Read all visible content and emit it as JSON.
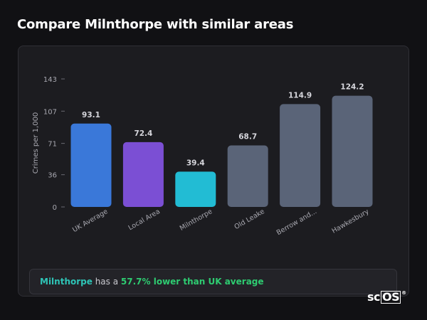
{
  "page": {
    "title": "Compare Milnthorpe with similar areas"
  },
  "chart_data": {
    "type": "bar",
    "ylabel": "Crimes per 1,000",
    "xlabel": "",
    "ylim": [
      0,
      143
    ],
    "yticks": [
      "0",
      "36",
      "71",
      "107",
      "143"
    ],
    "categories": [
      "UK Average",
      "Local Area",
      "Milnthorpe",
      "Old Leake",
      "Berrow and...",
      "Hawkesbury"
    ],
    "values": [
      93.1,
      72.4,
      39.4,
      68.7,
      114.9,
      124.2
    ],
    "value_labels": [
      "93.1",
      "72.4",
      "39.4",
      "68.7",
      "114.9",
      "124.2"
    ],
    "colors": [
      "#3a78d9",
      "#7b4fd4",
      "#22bcd4",
      "#5a6478",
      "#5a6478",
      "#5a6478"
    ],
    "grid": false
  },
  "summary": {
    "area": "Milnthorpe",
    "middle": " has a ",
    "stat": "57.7% lower than UK average"
  },
  "brand": {
    "logo_prefix": "sc",
    "logo_box": "OS",
    "logo_mark": "®"
  }
}
